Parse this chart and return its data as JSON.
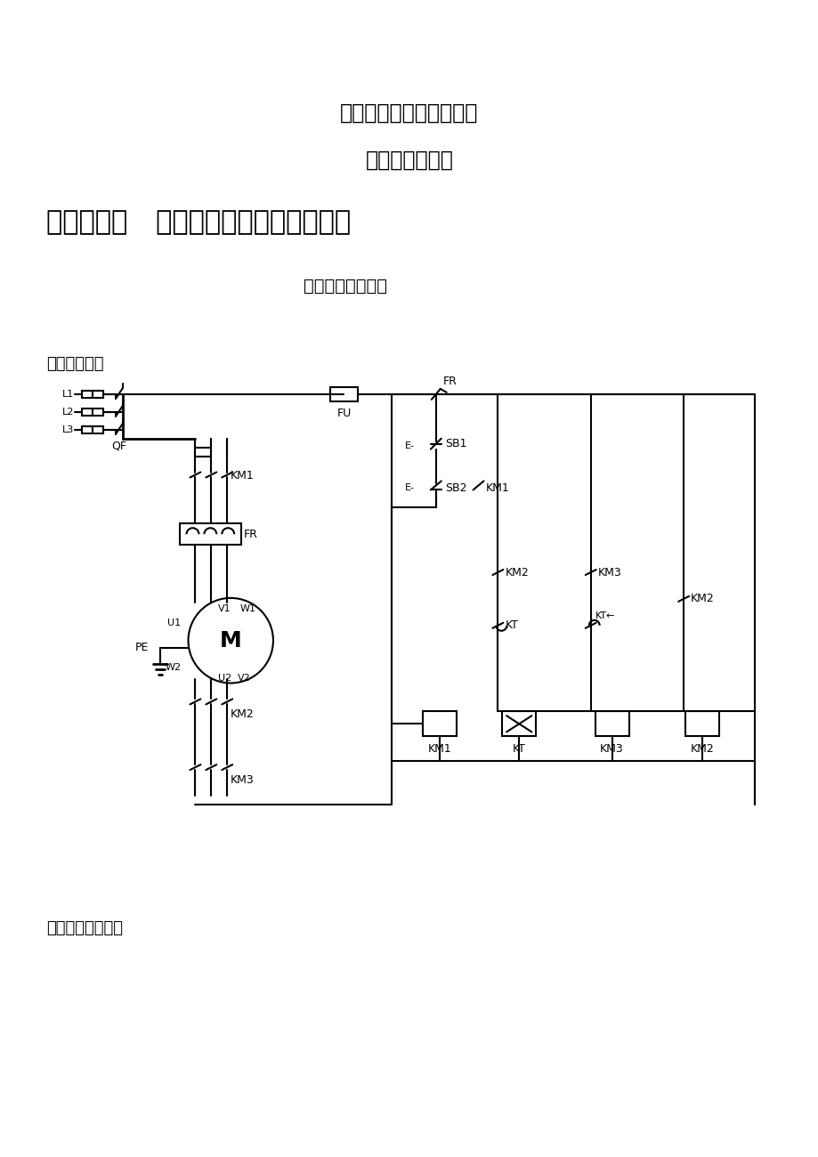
{
  "title1": "自动控制与机械工程学院",
  "title2": "２０１３年７月",
  "section_title": "第一部分：   电气线路安装调试技能训练",
  "subtitle": "技能训练题目一：",
  "label_circuit": "电气原理图：",
  "label_wiring": "电气安装接线图：",
  "bg_color": "#ffffff",
  "line_color": "#000000",
  "gray_color": "#888888"
}
